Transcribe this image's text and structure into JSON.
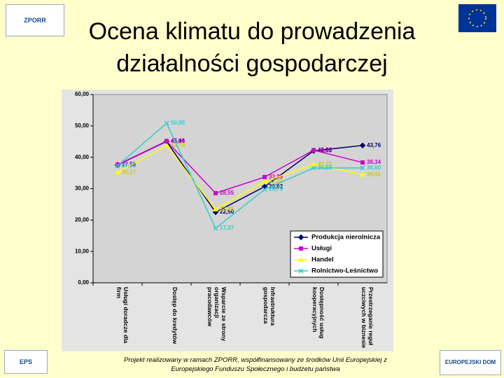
{
  "logos": {
    "top_left": "ZPORR",
    "bottom_left": "EPS",
    "bottom_right": "EUROPEJSKI DOM SPOTKAŃ"
  },
  "footer": "Projekt realizowany w ramach ZPORR, współfinansowany ze środków Unii Europejskiej z Europejskiego Funduszu Społecznego i budżetu państwa",
  "chart_data": {
    "type": "line",
    "title": "Ocena klimatu do prowadzenia działalności gospodarczej",
    "categories": [
      "Usługi doradcze dla firm",
      "Dostęp do kredytów",
      "Wsparcie ze strony organizacji pracodawców",
      "Infrastruktura gospodarcza",
      "Dostępność usług kooperacyjnych",
      "Przestrzeganie reguł uczciwych w biznesie"
    ],
    "series": [
      {
        "name": "Produkcja nierolnicza",
        "color": "#000066",
        "marker": "diamond",
        "values": [
          37.58,
          45.04,
          22.5,
          30.62,
          42.05,
          43.76
        ],
        "value_labels": [
          "37,58",
          "45,04",
          "22,50",
          "30,62",
          "42,05",
          "43,76"
        ]
      },
      {
        "name": "Usługi",
        "color": "#cc00cc",
        "marker": "square",
        "values": [
          37.66,
          45.16,
          28.55,
          33.69,
          42.26,
          38.34
        ],
        "value_labels": [
          "37,66",
          "45,16",
          "28,55",
          "33,69",
          "42,26",
          "38,34"
        ]
      },
      {
        "name": "Handel",
        "color": "#ffff00",
        "marker": "triangle",
        "values": [
          35.17,
          43.7,
          23.45,
          32.25,
          37.75,
          34.51
        ],
        "value_labels": [
          "35,17",
          "43,70",
          "23,45",
          "32,25",
          "37,75",
          "34,51"
        ]
      },
      {
        "name": "Rolnictwo-Leśnictwo",
        "color": "#33cccc",
        "marker": "x",
        "values": [
          37.31,
          50.85,
          17.37,
          29.75,
          36.58,
          36.6
        ],
        "value_labels": [
          "37,31",
          "50,85",
          "17,37",
          "29,75",
          "36,58",
          "36,60"
        ]
      }
    ],
    "ylim": [
      0,
      60
    ],
    "yticks": [
      {
        "value": 0,
        "label": "0,00"
      },
      {
        "value": 10,
        "label": "10,00"
      },
      {
        "value": 20,
        "label": "20,00"
      },
      {
        "value": 30,
        "label": "30,00"
      },
      {
        "value": 40,
        "label": "40,00"
      },
      {
        "value": 50,
        "label": "50,00"
      },
      {
        "value": 60,
        "label": "60,00"
      }
    ],
    "legend": "lower-right"
  }
}
